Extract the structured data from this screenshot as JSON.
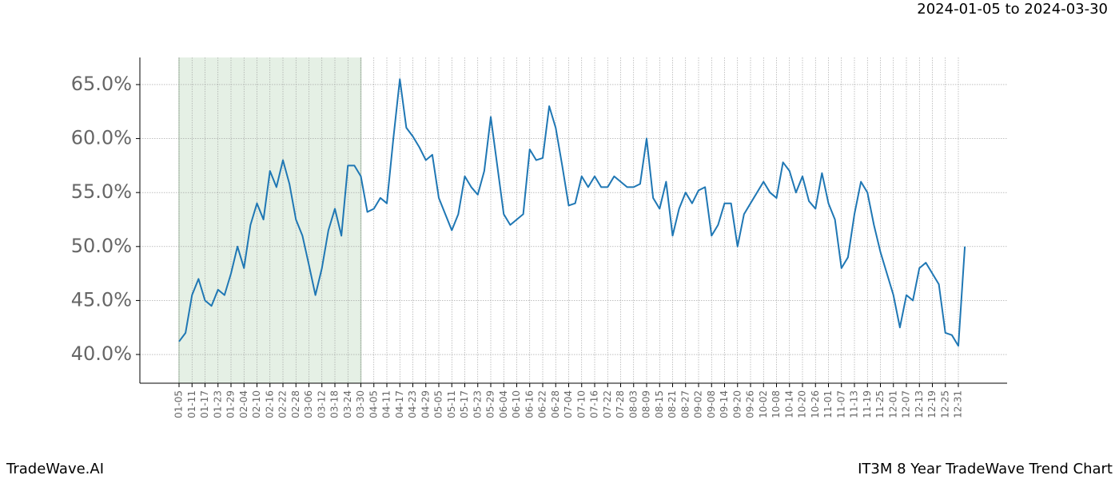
{
  "chart_data": {
    "type": "line",
    "header": "2024-01-05 to 2024-03-30",
    "footer_left": "TradeWave.AI",
    "footer_right": "IT3M 8 Year TradeWave Trend Chart",
    "categories": [
      "01-05",
      null,
      "01-11",
      null,
      "01-17",
      null,
      "01-23",
      null,
      "01-29",
      null,
      "02-04",
      null,
      "02-10",
      null,
      "02-16",
      null,
      "02-22",
      null,
      "02-28",
      null,
      "03-06",
      null,
      "03-12",
      null,
      "03-18",
      null,
      "03-24",
      null,
      "03-30",
      null,
      "04-05",
      null,
      "04-11",
      null,
      "04-17",
      null,
      "04-23",
      null,
      "04-29",
      null,
      "05-05",
      null,
      "05-11",
      null,
      "05-17",
      null,
      "05-23",
      null,
      "05-29",
      null,
      "06-04",
      null,
      "06-10",
      null,
      "06-16",
      null,
      "06-22",
      null,
      "06-28",
      null,
      "07-04",
      null,
      "07-10",
      null,
      "07-16",
      null,
      "07-22",
      null,
      "07-28",
      null,
      "08-03",
      null,
      "08-09",
      null,
      "08-15",
      null,
      "08-21",
      null,
      "08-27",
      null,
      "09-02",
      null,
      "09-08",
      null,
      "09-14",
      null,
      "09-20",
      null,
      "09-26",
      null,
      "10-02",
      null,
      "10-08",
      null,
      "10-14",
      null,
      "10-20",
      null,
      "10-26",
      null,
      "11-01",
      null,
      "11-07",
      null,
      "11-13",
      null,
      "11-19",
      null,
      "11-25",
      null,
      "12-01",
      null,
      "12-07",
      null,
      "12-13",
      null,
      "12-19",
      null,
      "12-25",
      null,
      "12-31",
      null
    ],
    "series": [
      {
        "color": "#1f77b4",
        "values": [
          41.2,
          42,
          45.5,
          47,
          45,
          44.5,
          46,
          45.5,
          47.5,
          50,
          48,
          52,
          54,
          52.5,
          57,
          55.5,
          58,
          55.8,
          52.5,
          51,
          48.3,
          45.5,
          48,
          51.5,
          53.5,
          51,
          57.5,
          57.5,
          56.5,
          53.2,
          53.5,
          54.5,
          54,
          60,
          65.5,
          61,
          60.2,
          59.2,
          58,
          58.5,
          54.5,
          53,
          51.5,
          53,
          56.5,
          55.5,
          54.8,
          57,
          62,
          57.5,
          53,
          52,
          52.5,
          53,
          59,
          58,
          58.2,
          63,
          61,
          57.5,
          53.8,
          54,
          56.5,
          55.5,
          56.5,
          55.5,
          55.5,
          56.5,
          56,
          55.5,
          55.5,
          55.8,
          60,
          54.5,
          53.5,
          56,
          51,
          53.5,
          55,
          54,
          55.2,
          55.5,
          51,
          52,
          54,
          54,
          50,
          53,
          54,
          55,
          56,
          55,
          54.5,
          57.8,
          57,
          55,
          56.5,
          54.2,
          53.5,
          56.8,
          54,
          52.5,
          48,
          49,
          53,
          56,
          55,
          52,
          49.5,
          47.5,
          45.5,
          42.5,
          45.5,
          45,
          48,
          48.5,
          47.5,
          46.5,
          42,
          41.8,
          40.8,
          50
        ]
      }
    ],
    "shaded_range": [
      "01-05",
      "03-30"
    ],
    "shade_color": "#e5f0e5",
    "ylim": [
      37.34,
      67.51
    ],
    "yticks": [
      {
        "value": 40,
        "label": "40.0%"
      },
      {
        "value": 45,
        "label": "45.0%"
      },
      {
        "value": 50,
        "label": "50.0%"
      },
      {
        "value": 55,
        "label": "55.0%"
      },
      {
        "value": 60,
        "label": "60.0%"
      },
      {
        "value": 65,
        "label": "65.0%"
      }
    ],
    "grid": true
  }
}
